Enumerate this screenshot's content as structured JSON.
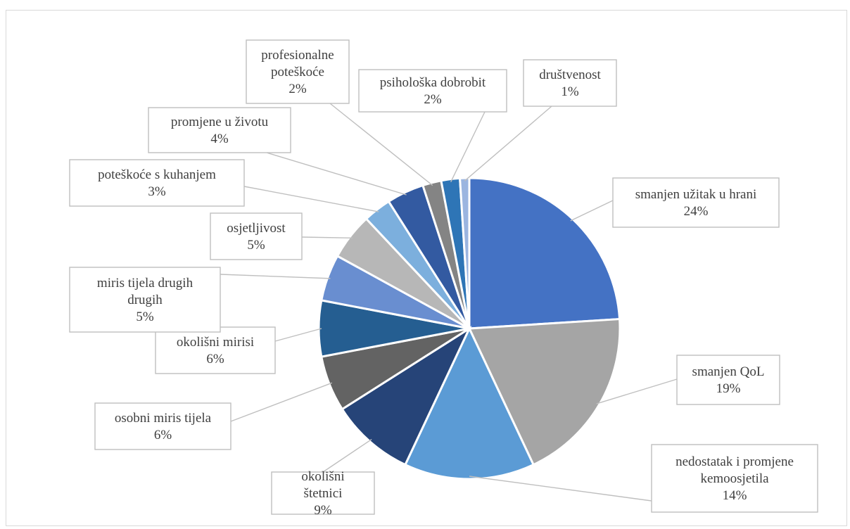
{
  "chart_data": {
    "type": "pie",
    "title": "",
    "slices": [
      {
        "label": "smanjen užitak u hrani",
        "pct_label": "24%",
        "value": 24,
        "color": "#4472c4"
      },
      {
        "label": "smanjen QoL",
        "pct_label": "19%",
        "value": 19,
        "color": "#a5a5a5"
      },
      {
        "label": "nedostatak i promjene kemoosjetila",
        "pct_label": "14%",
        "value": 14,
        "color": "#5b9bd5"
      },
      {
        "label": "okolišni štetnici",
        "pct_label": "9%",
        "value": 9,
        "color": "#264478"
      },
      {
        "label": "osobni miris tijela",
        "pct_label": "6%",
        "value": 6,
        "color": "#636363"
      },
      {
        "label": "okolišni mirisi",
        "pct_label": "6%",
        "value": 6,
        "color": "#255e91"
      },
      {
        "label": "miris tijela drugih drugih",
        "pct_label": "5%",
        "value": 5,
        "color": "#698ed0"
      },
      {
        "label": "osjetljivost",
        "pct_label": "5%",
        "value": 5,
        "color": "#b7b7b7"
      },
      {
        "label": "poteškoće s kuhanjem",
        "pct_label": "3%",
        "value": 3,
        "color": "#7cafdd"
      },
      {
        "label": "promjene u životu",
        "pct_label": "4%",
        "value": 4,
        "color": "#335aa1"
      },
      {
        "label": "profesionalne poteškoće",
        "pct_label": "2%",
        "value": 2,
        "color": "#848484"
      },
      {
        "label": "psihološka dobrobit",
        "pct_label": "2%",
        "value": 2,
        "color": "#2e75b6"
      },
      {
        "label": "društvenost",
        "pct_label": "1%",
        "value": 1,
        "color": "#9bb5e0"
      }
    ]
  }
}
